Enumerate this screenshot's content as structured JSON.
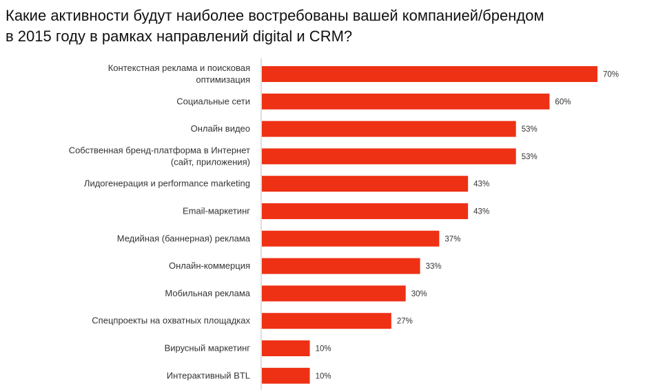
{
  "title_lines": [
    "Какие активности будут наиболее востребованы вашей компанией/брендом",
    "в 2015 году в рамках направлений digital и CRM?"
  ],
  "colors": {
    "bar": "#ee3115",
    "axis": "#bdbdbd"
  },
  "chart_data": {
    "type": "bar",
    "orientation": "horizontal",
    "title": "Какие активности будут наиболее востребованы вашей компанией/брендом в 2015 году в рамках направлений digital и CRM?",
    "categories": [
      [
        "Контекстная реклама и поисковая",
        "оптимизация"
      ],
      [
        "Социальные сети"
      ],
      [
        "Онлайн видео"
      ],
      [
        "Собственная бренд-платформа в Интернет",
        "(сайт, приложения)"
      ],
      [
        "Лидогенерация и performance marketing"
      ],
      [
        "Email-маркетинг"
      ],
      [
        "Медийная (баннерная) реклама"
      ],
      [
        "Онлайн-коммерция"
      ],
      [
        "Мобильная реклама"
      ],
      [
        "Спецпроекты на охватных площадках"
      ],
      [
        "Вирусный маркетинг"
      ],
      [
        "Интерактивный BTL"
      ]
    ],
    "values": [
      70,
      60,
      53,
      53,
      43,
      43,
      37,
      33,
      30,
      27,
      10,
      10
    ],
    "value_labels": [
      "70%",
      "60%",
      "53%",
      "53%",
      "43%",
      "43%",
      "37%",
      "33%",
      "30%",
      "27%",
      "10%",
      "10%"
    ],
    "unit": "%",
    "xlim": [
      0,
      70
    ],
    "grid": false,
    "legend": "none"
  }
}
